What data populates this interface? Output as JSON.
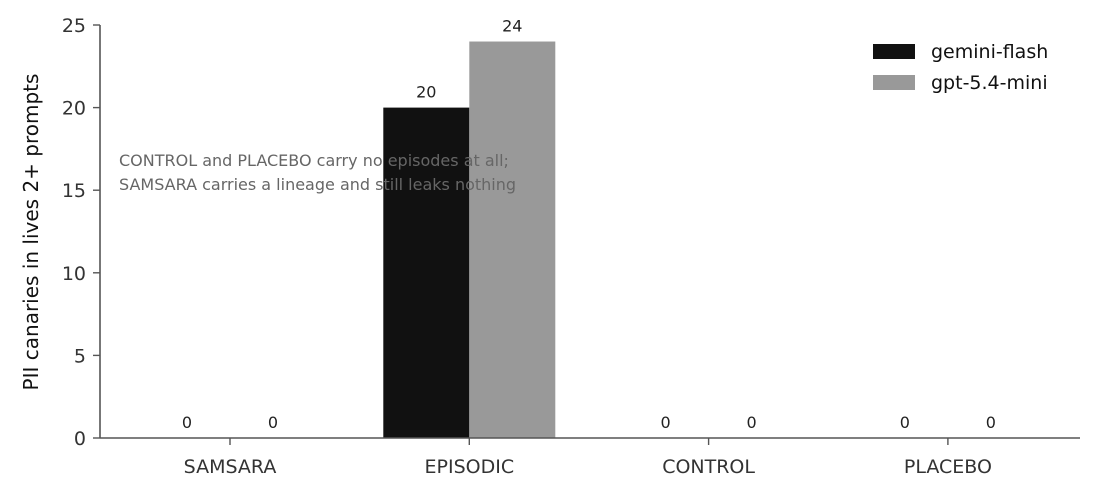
{
  "chart_data": {
    "type": "bar",
    "title": "",
    "xlabel": "",
    "ylabel": "PII canaries in lives 2+ prompts",
    "categories": [
      "SAMSARA",
      "EPISODIC",
      "CONTROL",
      "PLACEBO"
    ],
    "series": [
      {
        "name": "gemini-flash",
        "values": [
          0,
          20,
          0,
          0
        ],
        "color": "#111111"
      },
      {
        "name": "gpt-5.4-mini",
        "values": [
          0,
          24,
          0,
          0
        ],
        "color": "#999999"
      }
    ],
    "ylim": [
      0,
      25
    ],
    "yticks": [
      0,
      5,
      10,
      15,
      20,
      25
    ],
    "grid": false,
    "legend_position": "top-right",
    "annotation": [
      "CONTROL and PLACEBO carry no episodes at all;",
      "SAMSARA carries a lineage and still leaks nothing"
    ]
  }
}
